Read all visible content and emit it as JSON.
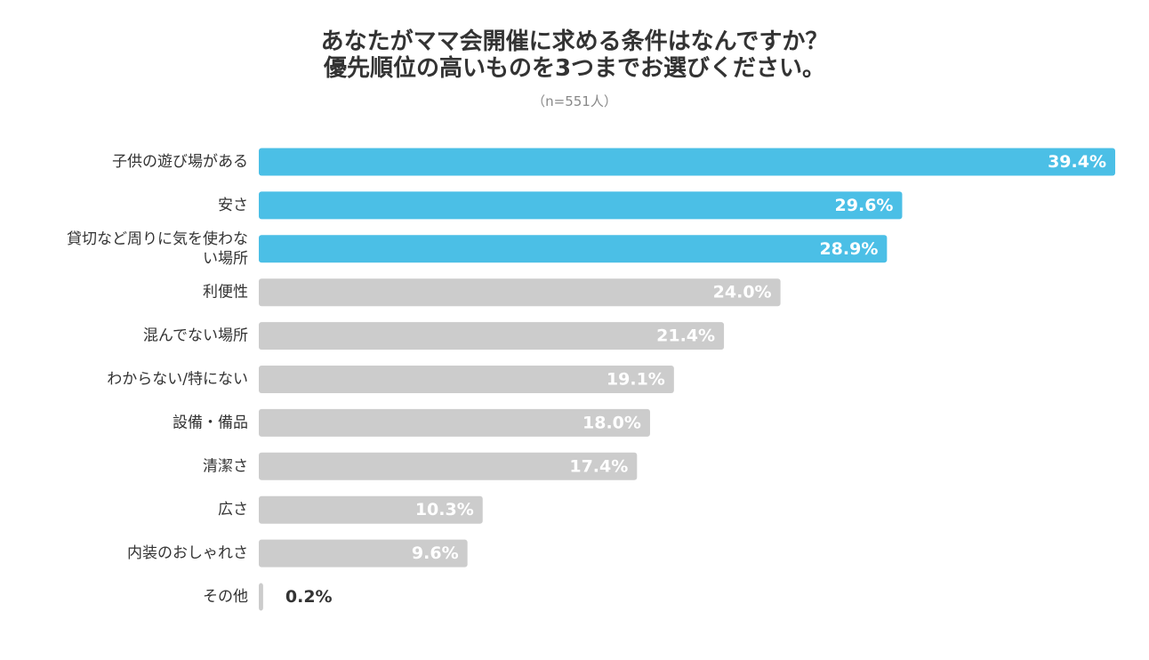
{
  "header": {
    "title_line1": "あなたがママ会開催に求める条件はなんですか？",
    "title_line2": "優先順位の高いものを3つまでお選びください。",
    "sample": "（n=551人）"
  },
  "colors": {
    "highlight": "#4BBFE6",
    "normal": "#CCCCCC",
    "value_text_inside": "#FFFFFF",
    "value_text_outside": "#333333"
  },
  "chart_data": {
    "type": "bar",
    "orientation": "horizontal",
    "unit": "%",
    "xlim": [
      0,
      40
    ],
    "grid": false,
    "legend": "none",
    "categories": [
      [
        "子供の遊び場がある"
      ],
      [
        "安さ"
      ],
      [
        "貸切など周りに気を使わな",
        "い場所"
      ],
      [
        "利便性"
      ],
      [
        "混んでない場所"
      ],
      [
        "わからない/特にない"
      ],
      [
        "設備・備品"
      ],
      [
        "清潔さ"
      ],
      [
        "広さ"
      ],
      [
        "内装のおしゃれさ"
      ],
      [
        "その他"
      ]
    ],
    "values": [
      39.4,
      29.6,
      28.9,
      24.0,
      21.4,
      19.1,
      18.0,
      17.4,
      10.3,
      9.6,
      0.2
    ],
    "value_labels": [
      "39.4%",
      "29.6%",
      "28.9%",
      "24.0%",
      "21.4%",
      "19.1%",
      "18.0%",
      "17.4%",
      "10.3%",
      "9.6%",
      "0.2%"
    ],
    "highlighted": [
      true,
      true,
      true,
      false,
      false,
      false,
      false,
      false,
      false,
      false,
      false
    ]
  }
}
